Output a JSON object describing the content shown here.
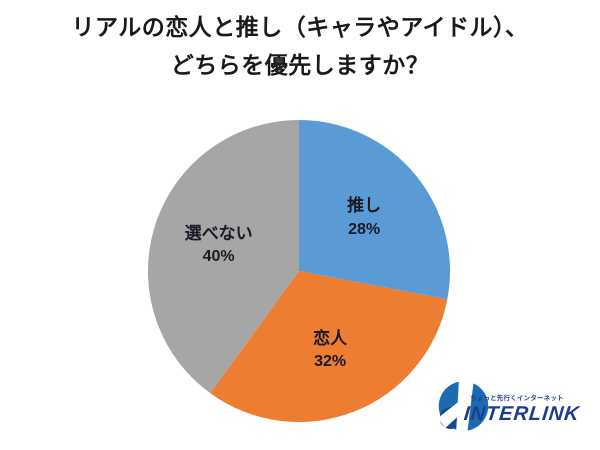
{
  "title": {
    "line1": "リアルの恋人と推し（キャラやアイドル）、",
    "line2": "どちらを優先しますか？"
  },
  "chart_data": {
    "type": "pie",
    "title": "リアルの恋人と推し（キャラやアイドル）、どちらを優先しますか？",
    "categories": [
      "推し",
      "恋人",
      "選べない"
    ],
    "values": [
      28,
      32,
      40
    ],
    "value_labels": [
      "28%",
      "32%",
      "40%"
    ],
    "unit": "%",
    "colors": [
      "#5B9BD5",
      "#ED7D31",
      "#A6A6A6"
    ],
    "start_angle_deg": 0,
    "direction": "clockwise",
    "legend": "none",
    "labels_inside": true
  },
  "logo": {
    "brand": "INTERLINK",
    "tagline": "ちょっと先行くインターネット",
    "brand_color": "#1c3d8f",
    "icon_blue": "#1d6ab2",
    "icon_dark_blue": "#12498e"
  }
}
